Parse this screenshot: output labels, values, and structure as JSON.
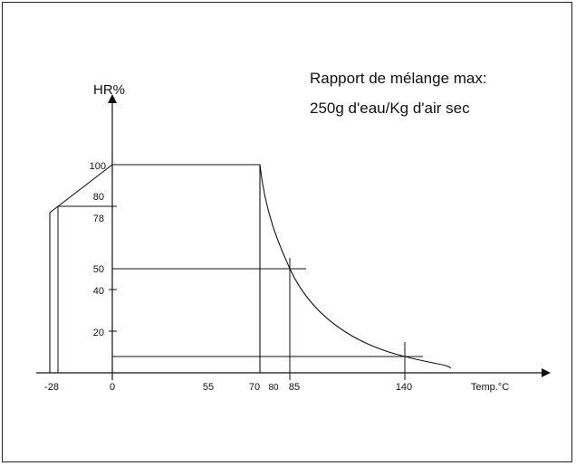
{
  "annotation": {
    "line1": "Rapport de mélange max:",
    "line2": "250g d'eau/Kg d'air sec"
  },
  "y_axis": {
    "label": "HR%"
  },
  "x_axis": {
    "label": "Temp.°C"
  },
  "chart_data": {
    "type": "line",
    "y_ticks": [
      "100",
      "80",
      "78",
      "50",
      "40",
      "20"
    ],
    "x_ticks": [
      "-28",
      "0",
      "55",
      "70",
      "80",
      "85",
      "140"
    ],
    "envelope_points": [
      {
        "temp": -28,
        "hr": 78
      },
      {
        "temp": 0,
        "hr": 100
      },
      {
        "temp": 70,
        "hr": 100
      }
    ],
    "decay_curve_points": [
      {
        "temp": 70,
        "hr": 100
      },
      {
        "temp": 85,
        "hr": 50
      },
      {
        "temp": 140,
        "hr": 10
      }
    ],
    "reference_lines": [
      {
        "hr": 50,
        "temp": 85
      },
      {
        "hr": 10,
        "temp": 140
      }
    ]
  }
}
